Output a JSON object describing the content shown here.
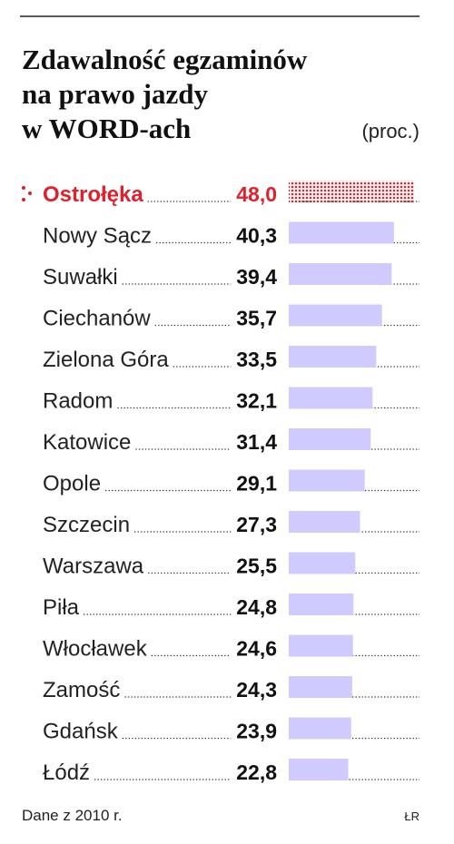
{
  "chart_data": {
    "type": "bar",
    "title_lines": [
      "Zdawalność egzaminów",
      "na prawo jazdy",
      "w WORD-ach"
    ],
    "unit": "(proc.)",
    "categories": [
      "Ostrołęka",
      "Nowy Sącz",
      "Suwałki",
      "Ciechanów",
      "Zielona Góra",
      "Radom",
      "Katowice",
      "Opole",
      "Szczecin",
      "Warszawa",
      "Piła",
      "Włocławek",
      "Zamość",
      "Gdańsk",
      "Łódź"
    ],
    "values": [
      48.0,
      40.3,
      39.4,
      35.7,
      33.5,
      32.1,
      31.4,
      29.1,
      27.3,
      25.5,
      24.8,
      24.6,
      24.3,
      23.9,
      22.8
    ],
    "value_labels": [
      "48,0",
      "40,3",
      "39,4",
      "35,7",
      "33,5",
      "32,1",
      "31,4",
      "29,1",
      "27,3",
      "25,5",
      "24,8",
      "24,6",
      "24,3",
      "23,9",
      "22,8"
    ],
    "color": "#cfcbff",
    "highlight_index": 0,
    "highlight_color": "#e0202a",
    "source": "Dane z 2010 r.",
    "credit": "ŁR"
  }
}
